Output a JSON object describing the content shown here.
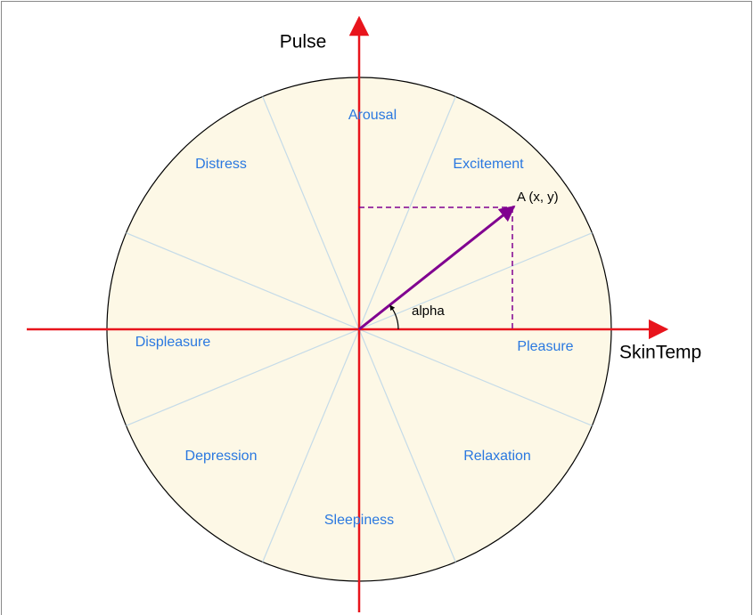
{
  "axes": {
    "y_label": "Pulse",
    "x_label": "SkinTemp"
  },
  "regions": [
    "Arousal",
    "Excitement",
    "Pleasure",
    "Relaxation",
    "Sleepiness",
    "Depression",
    "Displeasure",
    "Distress"
  ],
  "point_label": "A (x, y)",
  "angle_label": "alpha"
}
